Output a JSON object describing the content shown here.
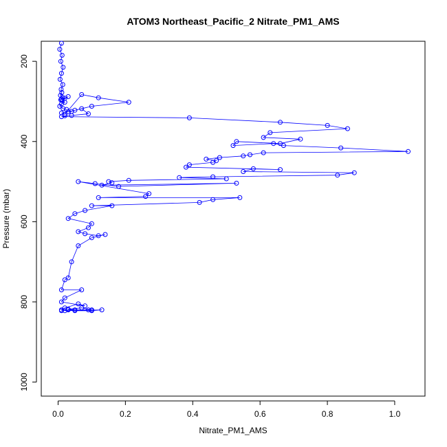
{
  "chart_data": {
    "type": "line",
    "title": "ATOM3 Northeast_Pacific_2 Nitrate_PM1_AMS",
    "xlabel": "Nitrate_PM1_AMS",
    "ylabel": "Pressure (mbar)",
    "xlim": [
      -0.05,
      1.09
    ],
    "ylim": [
      1035,
      150
    ],
    "y_reversed": true,
    "grid": false,
    "legend": "none",
    "x_ticks": [
      0.0,
      0.2,
      0.4,
      0.6,
      0.8,
      1.0
    ],
    "x_tick_labels": [
      "0.0",
      "0.2",
      "0.4",
      "0.6",
      "0.8",
      "1.0"
    ],
    "y_ticks": [
      200,
      400,
      600,
      800,
      1000
    ],
    "y_tick_labels": [
      "200",
      "400",
      "600",
      "800",
      "1000"
    ],
    "line_color": "#0000ff",
    "marker": "open-circle",
    "series": [
      {
        "x": [
          0.01,
          0.005,
          0.012,
          0.008,
          0.015,
          0.01,
          0.006,
          0.014,
          0.009,
          0.011,
          0.007,
          0.013,
          0.02,
          0.01,
          0.008,
          0.03,
          0.012,
          0.02,
          0.01,
          0.005,
          0.015,
          0.025,
          0.04,
          0.01,
          0.02,
          0.07,
          0.12,
          0.21,
          0.1,
          0.05,
          0.03,
          0.07,
          0.09,
          0.04,
          0.02,
          0.01,
          0.39,
          0.66,
          0.8,
          0.86,
          0.63,
          0.61,
          0.72,
          0.66,
          0.53,
          0.52,
          0.64,
          0.67,
          0.84,
          1.04,
          0.61,
          0.57,
          0.55,
          0.48,
          0.44,
          0.47,
          0.46,
          0.39,
          0.38,
          0.66,
          0.58,
          0.55,
          0.88,
          0.83,
          0.46,
          0.36,
          0.5,
          0.21,
          0.15,
          0.16,
          0.13,
          0.53,
          0.18,
          0.11,
          0.06,
          0.27,
          0.26,
          0.12,
          0.54,
          0.46,
          0.42,
          0.1,
          0.16,
          0.08,
          0.05,
          0.03,
          0.1,
          0.09,
          0.06,
          0.08,
          0.12,
          0.14,
          0.1,
          0.06,
          0.04,
          0.03,
          0.02,
          0.01,
          0.07,
          0.02,
          0.01,
          0.08,
          0.06,
          0.02,
          0.01,
          0.1,
          0.07,
          0.03,
          0.05,
          0.09,
          0.02,
          0.13,
          0.1,
          0.05,
          0.03,
          0.01
        ],
        "y": [
          155,
          170,
          185,
          200,
          215,
          230,
          245,
          258,
          270,
          278,
          285,
          290,
          292,
          294,
          296,
          288,
          298,
          302,
          306,
          312,
          318,
          320,
          325,
          329,
          332,
          283,
          291,
          302,
          312,
          322,
          326,
          318,
          331,
          335,
          336,
          338,
          341,
          352,
          360,
          368,
          378,
          390,
          394,
          405,
          400,
          410,
          405,
          410,
          416,
          425,
          428,
          433,
          436,
          440,
          444,
          448,
          452,
          458,
          464,
          470,
          468,
          475,
          478,
          484,
          488,
          490,
          493,
          497,
          500,
          503,
          509,
          504,
          512,
          505,
          500,
          530,
          537,
          540,
          540,
          545,
          552,
          560,
          560,
          572,
          580,
          592,
          605,
          615,
          625,
          630,
          635,
          632,
          640,
          660,
          700,
          740,
          745,
          770,
          770,
          790,
          800,
          810,
          805,
          815,
          820,
          820,
          815,
          818,
          820,
          820,
          822,
          820,
          822,
          822,
          820,
          822
        ]
      }
    ]
  }
}
